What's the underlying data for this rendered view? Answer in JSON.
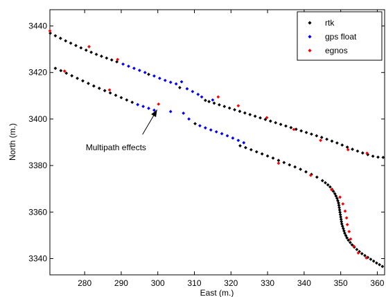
{
  "chart_data": {
    "type": "scatter",
    "xlabel": "East (m.)",
    "ylabel": "North (m.)",
    "xlim": [
      270.5,
      362
    ],
    "ylim": [
      3333,
      3447
    ],
    "xticks": [
      280,
      290,
      300,
      310,
      320,
      330,
      340,
      350,
      360
    ],
    "yticks": [
      3340,
      3360,
      3380,
      3400,
      3420,
      3440
    ],
    "grid": false,
    "legend_position": "top-right",
    "series": [
      {
        "name": "rtk",
        "color": "#000000",
        "points": [
          [
            270.6,
            3436.9
          ],
          [
            272.0,
            3435.8
          ],
          [
            273.4,
            3434.7
          ],
          [
            274.8,
            3433.6
          ],
          [
            276.2,
            3432.6
          ],
          [
            277.6,
            3431.6
          ],
          [
            279.0,
            3430.6
          ],
          [
            280.4,
            3429.6
          ],
          [
            281.8,
            3428.7
          ],
          [
            283.2,
            3427.8
          ],
          [
            284.6,
            3427.0
          ],
          [
            286.0,
            3426.2
          ],
          [
            287.4,
            3425.4
          ],
          [
            288.8,
            3424.6
          ],
          [
            297.5,
            3419.2
          ],
          [
            306.0,
            3413.5
          ],
          [
            313.0,
            3408.0
          ],
          [
            314.0,
            3407.5
          ],
          [
            315.4,
            3406.8
          ],
          [
            316.8,
            3406.1
          ],
          [
            318.2,
            3405.4
          ],
          [
            319.6,
            3404.7
          ],
          [
            321.0,
            3404.0
          ],
          [
            322.4,
            3403.3
          ],
          [
            323.8,
            3402.6
          ],
          [
            325.2,
            3401.9
          ],
          [
            326.6,
            3401.2
          ],
          [
            328.0,
            3400.5
          ],
          [
            329.4,
            3399.8
          ],
          [
            330.8,
            3399.1
          ],
          [
            332.2,
            3398.4
          ],
          [
            333.6,
            3397.7
          ],
          [
            335.0,
            3397.0
          ],
          [
            336.4,
            3396.3
          ],
          [
            337.8,
            3395.6
          ],
          [
            339.2,
            3394.9
          ],
          [
            340.6,
            3394.2
          ],
          [
            342.0,
            3393.5
          ],
          [
            343.4,
            3392.8
          ],
          [
            344.8,
            3392.1
          ],
          [
            346.2,
            3391.3
          ],
          [
            347.6,
            3390.5
          ],
          [
            349.0,
            3389.7
          ],
          [
            350.4,
            3388.8
          ],
          [
            351.8,
            3387.9
          ],
          [
            353.2,
            3387.0
          ],
          [
            354.6,
            3386.2
          ],
          [
            356.0,
            3385.4
          ],
          [
            357.4,
            3384.7
          ],
          [
            358.8,
            3384.0
          ],
          [
            360.2,
            3383.6
          ],
          [
            361.6,
            3383.5
          ],
          [
            272.0,
            3421.8
          ],
          [
            273.5,
            3420.8
          ],
          [
            275.0,
            3419.7
          ],
          [
            276.5,
            3418.6
          ],
          [
            278.0,
            3417.5
          ],
          [
            279.5,
            3416.4
          ],
          [
            281.0,
            3415.3
          ],
          [
            282.5,
            3414.2
          ],
          [
            284.0,
            3413.2
          ],
          [
            285.5,
            3412.2
          ],
          [
            287.0,
            3411.2
          ],
          [
            288.5,
            3410.2
          ],
          [
            290.0,
            3409.2
          ],
          [
            291.5,
            3408.2
          ],
          [
            293.0,
            3407.2
          ],
          [
            310.2,
            3398.0
          ],
          [
            322.5,
            3388.5
          ],
          [
            324.0,
            3387.7
          ],
          [
            325.5,
            3386.8
          ],
          [
            327.0,
            3385.9
          ],
          [
            328.5,
            3385.0
          ],
          [
            330.0,
            3384.1
          ],
          [
            331.5,
            3383.2
          ],
          [
            333.0,
            3382.2
          ],
          [
            334.5,
            3381.3
          ],
          [
            336.0,
            3380.3
          ],
          [
            337.5,
            3379.4
          ],
          [
            339.0,
            3378.4
          ],
          [
            340.5,
            3377.3
          ],
          [
            342.0,
            3376.2
          ],
          [
            343.5,
            3375.0
          ],
          [
            345.0,
            3373.5
          ],
          [
            345.8,
            3372.6
          ],
          [
            346.5,
            3371.7
          ],
          [
            347.1,
            3370.8
          ],
          [
            347.6,
            3369.8
          ],
          [
            348.0,
            3368.9
          ],
          [
            348.4,
            3367.9
          ],
          [
            348.7,
            3366.9
          ],
          [
            349.0,
            3365.9
          ],
          [
            349.2,
            3364.9
          ],
          [
            349.4,
            3363.9
          ],
          [
            349.5,
            3362.9
          ],
          [
            349.6,
            3361.9
          ],
          [
            349.7,
            3360.9
          ],
          [
            349.8,
            3359.9
          ],
          [
            349.9,
            3358.9
          ],
          [
            350.0,
            3357.9
          ],
          [
            350.1,
            3356.9
          ],
          [
            350.2,
            3355.9
          ],
          [
            350.3,
            3354.9
          ],
          [
            350.5,
            3353.9
          ],
          [
            350.7,
            3352.9
          ],
          [
            350.9,
            3351.9
          ],
          [
            351.1,
            3350.9
          ],
          [
            351.4,
            3349.9
          ],
          [
            351.7,
            3348.9
          ],
          [
            352.1,
            3347.9
          ],
          [
            352.6,
            3346.9
          ],
          [
            353.1,
            3345.9
          ],
          [
            353.7,
            3344.9
          ],
          [
            354.4,
            3343.9
          ],
          [
            355.1,
            3343.0
          ],
          [
            355.8,
            3342.1
          ],
          [
            356.6,
            3341.3
          ],
          [
            357.4,
            3340.5
          ],
          [
            358.2,
            3339.7
          ],
          [
            359.0,
            3338.9
          ],
          [
            359.8,
            3338.1
          ],
          [
            360.6,
            3337.4
          ],
          [
            361.4,
            3336.6
          ]
        ]
      },
      {
        "name": "gps float",
        "color": "#0000ff",
        "points": [
          [
            290.5,
            3423.6
          ],
          [
            292.0,
            3422.7
          ],
          [
            293.5,
            3421.8
          ],
          [
            295.0,
            3420.9
          ],
          [
            296.5,
            3420.0
          ],
          [
            299.0,
            3418.5
          ],
          [
            300.5,
            3417.5
          ],
          [
            302.0,
            3416.6
          ],
          [
            303.5,
            3415.8
          ],
          [
            305.0,
            3415.1
          ],
          [
            306.5,
            3416.0
          ],
          [
            308.0,
            3413.0
          ],
          [
            309.5,
            3411.8
          ],
          [
            311.0,
            3410.6
          ],
          [
            312.0,
            3409.5
          ],
          [
            315.0,
            3408.2
          ],
          [
            294.5,
            3406.2
          ],
          [
            296.0,
            3405.4
          ],
          [
            297.5,
            3404.6
          ],
          [
            299.0,
            3403.8
          ],
          [
            303.5,
            3403.2
          ],
          [
            307.0,
            3402.5
          ],
          [
            308.5,
            3400.0
          ],
          [
            311.5,
            3397.1
          ],
          [
            313.0,
            3396.2
          ],
          [
            314.5,
            3395.3
          ],
          [
            316.0,
            3394.5
          ],
          [
            317.5,
            3393.7
          ],
          [
            319.0,
            3392.8
          ],
          [
            320.5,
            3391.8
          ],
          [
            322.0,
            3390.8
          ],
          [
            323.5,
            3389.8
          ]
        ]
      },
      {
        "name": "egnos",
        "color": "#ff0000",
        "points": [
          [
            270.5,
            3437.9
          ],
          [
            281.2,
            3431.1
          ],
          [
            289.0,
            3425.6
          ],
          [
            274.5,
            3420.6
          ],
          [
            286.8,
            3412.5
          ],
          [
            300.2,
            3406.4
          ],
          [
            316.5,
            3409.5
          ],
          [
            322.0,
            3405.7
          ],
          [
            329.8,
            3400.6
          ],
          [
            337.2,
            3395.5
          ],
          [
            344.5,
            3390.8
          ],
          [
            352.0,
            3386.8
          ],
          [
            357.2,
            3385.3
          ],
          [
            333.0,
            3381.0
          ],
          [
            341.8,
            3375.8
          ],
          [
            347.5,
            3369.6
          ],
          [
            349.8,
            3366.4
          ],
          [
            350.6,
            3363.5
          ],
          [
            351.2,
            3360.4
          ],
          [
            351.6,
            3357.5
          ],
          [
            351.8,
            3354.6
          ],
          [
            352.3,
            3351.6
          ],
          [
            352.7,
            3348.4
          ],
          [
            353.6,
            3345.3
          ],
          [
            354.8,
            3342.4
          ],
          [
            357.0,
            3340.3
          ]
        ]
      }
    ],
    "annotations": [
      {
        "text": "Multipath effects",
        "label_at": [
          293,
          3388
        ],
        "arrow_to": [
          299.8,
          3404
        ]
      }
    ]
  }
}
